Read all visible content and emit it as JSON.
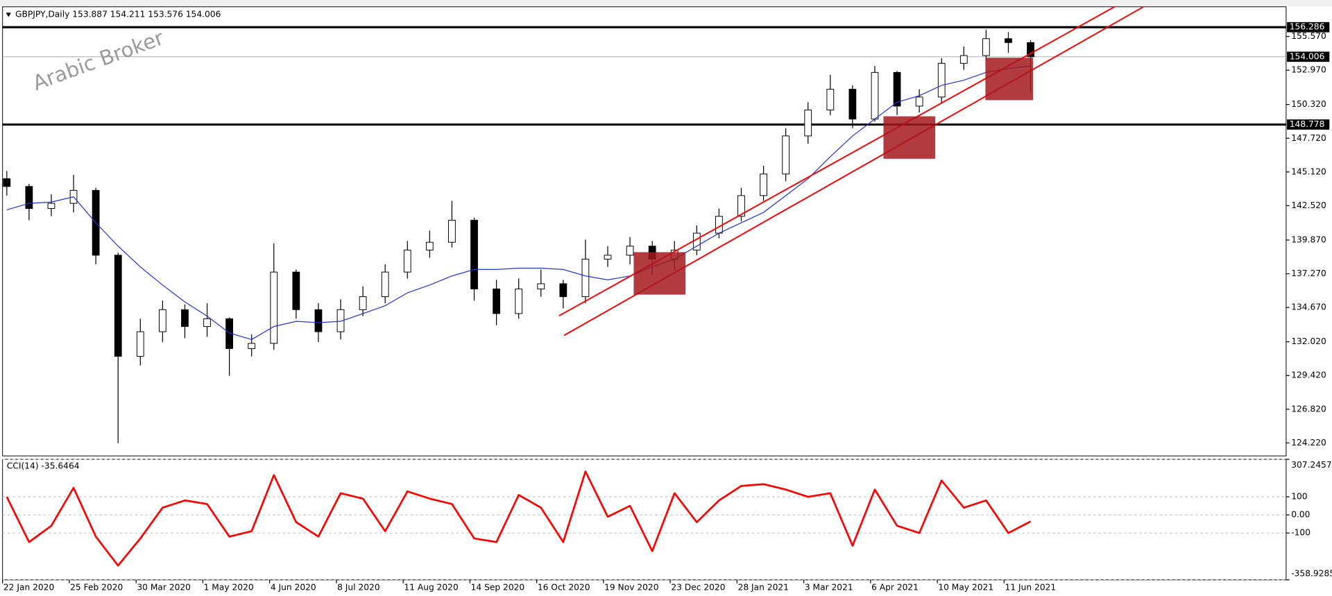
{
  "watermark": "Arabic Broker",
  "chart_data": [
    {
      "type": "candlestick",
      "title": "GBPJPY,Daily 153.887 154.211 153.576 154.006",
      "categories": [
        "22 Jan 2020",
        null,
        null,
        "25 Feb 2020",
        null,
        null,
        "30 Mar 2020",
        null,
        null,
        "1 May 2020",
        null,
        null,
        "4 Jun 2020",
        null,
        null,
        "8 Jul 2020",
        null,
        null,
        "11 Aug 2020",
        null,
        null,
        "14 Sep 2020",
        null,
        null,
        "16 Oct 2020",
        null,
        null,
        "19 Nov 2020",
        null,
        null,
        "23 Dec 2020",
        null,
        null,
        "28 Jan 2021",
        null,
        null,
        "3 Mar 2021",
        null,
        null,
        "6 Apr 2021",
        null,
        null,
        "10 May 2021",
        null,
        null,
        "11 Jun 2021",
        null
      ],
      "open": [
        144.6,
        144.0,
        142.3,
        142.7,
        143.7,
        138.7,
        130.9,
        132.8,
        134.5,
        133.2,
        133.8,
        131.5,
        131.9,
        137.4,
        134.5,
        132.8,
        134.5,
        135.5,
        137.4,
        139.1,
        139.7,
        141.4,
        136.1,
        134.2,
        136.1,
        136.5,
        135.5,
        138.4,
        138.7,
        139.4,
        138.4,
        139.1,
        140.4,
        141.7,
        143.3,
        144.96,
        147.9,
        149.9,
        151.5,
        149.2,
        152.8,
        150.2,
        150.9,
        153.5,
        154.1,
        155.4,
        155.1
      ],
      "high": [
        145.2,
        144.2,
        143.4,
        144.9,
        143.9,
        138.9,
        133.8,
        135.2,
        134.9,
        135.0,
        133.9,
        132.6,
        139.6,
        137.6,
        135.0,
        135.3,
        136.3,
        138.0,
        139.8,
        140.6,
        142.9,
        141.6,
        136.8,
        136.9,
        137.6,
        136.8,
        139.9,
        139.4,
        140.1,
        139.8,
        139.8,
        141.0,
        142.3,
        143.9,
        145.6,
        148.5,
        150.5,
        152.6,
        151.8,
        153.3,
        152.9,
        151.5,
        153.9,
        154.8,
        156.1,
        155.9,
        155.3
      ],
      "low": [
        143.3,
        141.4,
        141.7,
        142.0,
        138.0,
        124.2,
        130.2,
        132.0,
        132.3,
        132.4,
        129.4,
        130.9,
        131.4,
        133.8,
        132.0,
        132.2,
        134.0,
        135.0,
        136.9,
        138.5,
        139.3,
        135.2,
        133.3,
        133.8,
        135.5,
        134.6,
        135.0,
        137.8,
        138.0,
        137.2,
        137.5,
        138.7,
        140.0,
        141.3,
        142.9,
        144.4,
        147.3,
        149.5,
        148.5,
        149.0,
        149.5,
        149.7,
        150.4,
        153.0,
        153.7,
        154.3,
        151.3
      ],
      "close": [
        144.0,
        142.3,
        142.7,
        143.7,
        138.7,
        130.9,
        132.8,
        134.5,
        133.2,
        133.8,
        131.5,
        131.9,
        137.4,
        134.5,
        132.8,
        134.5,
        135.5,
        137.4,
        139.1,
        139.7,
        141.4,
        136.1,
        134.2,
        136.1,
        136.5,
        135.5,
        138.4,
        138.7,
        139.4,
        138.4,
        139.1,
        140.4,
        141.7,
        143.3,
        144.96,
        147.9,
        149.9,
        151.5,
        149.2,
        152.8,
        150.2,
        150.9,
        153.5,
        154.1,
        155.4,
        155.1,
        154.006
      ],
      "ma": {
        "color": "#2433d6",
        "values": [
          142.2,
          142.7,
          142.8,
          143.2,
          141.2,
          139.4,
          137.8,
          136.4,
          135.1,
          134.0,
          132.7,
          132.2,
          133.2,
          133.6,
          133.5,
          133.6,
          134.2,
          134.8,
          135.8,
          136.4,
          137.1,
          137.6,
          137.6,
          137.7,
          137.7,
          137.6,
          137.1,
          136.8,
          137.1,
          137.8,
          138.4,
          139.4,
          140.4,
          141.2,
          142.0,
          143.3,
          144.6,
          146.3,
          147.9,
          149.2,
          150.5,
          151.0,
          151.8,
          152.2,
          152.8,
          153.1,
          153.3
        ]
      },
      "levels": [
        {
          "value": 156.286,
          "label": "156.286",
          "color": "#000000"
        },
        {
          "value": 154.006,
          "label": "154.006",
          "color": "#a0a0a0"
        },
        {
          "value": 148.778,
          "label": "148.778",
          "color": "#000000"
        }
      ],
      "ylim": [
        123.22,
        157.86
      ],
      "yticks": [
        {
          "value": 155.57,
          "label": "155.570"
        },
        {
          "value": 152.97,
          "label": "152.970"
        },
        {
          "value": 150.32,
          "label": "150.320"
        },
        {
          "value": 147.72,
          "label": "147.720"
        },
        {
          "value": 145.12,
          "label": "145.120"
        },
        {
          "value": 142.52,
          "label": "142.520"
        },
        {
          "value": 139.87,
          "label": "139.870"
        },
        {
          "value": 137.27,
          "label": "137.270"
        },
        {
          "value": 134.67,
          "label": "134.670"
        },
        {
          "value": 132.02,
          "label": "132.020"
        },
        {
          "value": 129.42,
          "label": "129.420"
        },
        {
          "value": 126.82,
          "label": "126.820"
        },
        {
          "value": 124.22,
          "label": "124.220"
        }
      ]
    },
    {
      "type": "line",
      "title": "CCI(14) -35.6464",
      "color": "#ff0000",
      "values": [
        100,
        -150,
        -60,
        150,
        -120,
        -280,
        -130,
        40,
        80,
        60,
        -120,
        -90,
        220,
        -40,
        -120,
        120,
        90,
        -90,
        130,
        90,
        60,
        -130,
        -150,
        110,
        40,
        -150,
        240,
        -10,
        50,
        -200,
        120,
        -40,
        80,
        160,
        170,
        140,
        100,
        120,
        -170,
        140,
        -60,
        -100,
        190,
        40,
        80,
        -100,
        -36
      ],
      "ylim": [
        -358.9285,
        307.2457
      ],
      "yticks": [
        307.2457,
        100,
        {
          "value": 0,
          "label": "0.00"
        },
        -100,
        -358.9285
      ],
      "grid": true
    }
  ]
}
